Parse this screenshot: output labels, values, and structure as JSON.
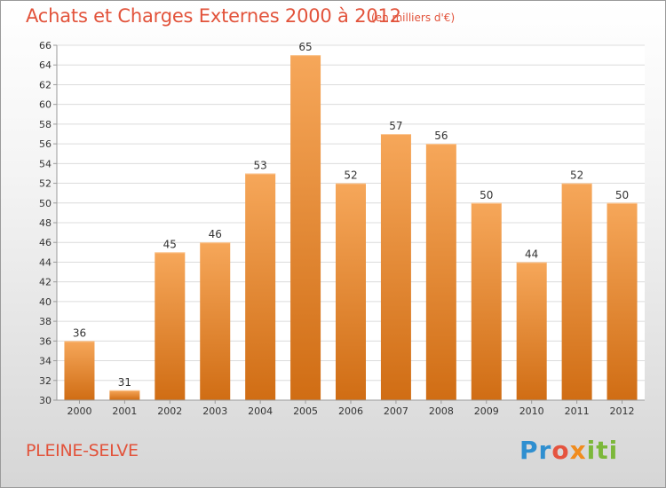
{
  "header": {
    "title": "Achats et Charges Externes 2000 à 2012",
    "unit": "(en milliers d'€)"
  },
  "footer": {
    "commune": "PLEINE-SELVE",
    "logo_text": "Proxiti",
    "logo_parts": [
      "Pr",
      "o",
      "x",
      "iti"
    ]
  },
  "colors": {
    "title": "#e2533b",
    "bar_top": "#f6a75a",
    "bar_bottom": "#d06d14",
    "grid": "#dcdcdc",
    "axis": "#9a9a9a"
  },
  "chart_data": {
    "type": "bar",
    "title": "Achats et Charges Externes 2000 à 2012",
    "xlabel": "",
    "ylabel": "",
    "categories": [
      "2000",
      "2001",
      "2002",
      "2003",
      "2004",
      "2005",
      "2006",
      "2007",
      "2008",
      "2009",
      "2010",
      "2011",
      "2012"
    ],
    "values": [
      36,
      31,
      45,
      46,
      53,
      65,
      52,
      57,
      56,
      50,
      44,
      52,
      50
    ],
    "ylim": [
      30,
      66
    ],
    "yticks": [
      30,
      32,
      34,
      36,
      38,
      40,
      42,
      44,
      46,
      48,
      50,
      52,
      54,
      56,
      58,
      60,
      62,
      64,
      66
    ],
    "grid": true,
    "legend": "none"
  }
}
